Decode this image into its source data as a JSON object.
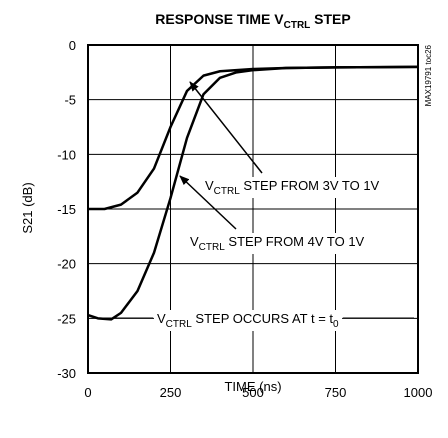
{
  "chart_data": {
    "type": "line",
    "title": [
      {
        "text": "RESPONSE TIME V"
      },
      {
        "text": "CTRL",
        "sub": true
      },
      {
        "text": " STEP"
      }
    ],
    "side_note": "MAX19791 toc26",
    "x_label": "TIME (ns)",
    "y_label": "S21 (dB)",
    "xlim": [
      0,
      1000
    ],
    "xticks": [
      0,
      250,
      500,
      750,
      1000
    ],
    "ylim": [
      -30,
      0
    ],
    "yticks": [
      0,
      -5,
      -10,
      -15,
      -20,
      -25,
      -30
    ],
    "grid": true,
    "series": [
      {
        "name": "3V TO 1V",
        "color": "#000000",
        "x": [
          0,
          50,
          100,
          150,
          200,
          250,
          300,
          350,
          400,
          500,
          600,
          750,
          1000
        ],
        "values": [
          -15,
          -15,
          -14.6,
          -13.5,
          -11.3,
          -7.5,
          -4.2,
          -2.8,
          -2.4,
          -2.2,
          -2.1,
          -2.05,
          -2
        ]
      },
      {
        "name": "4V TO 1V",
        "color": "#000000",
        "x": [
          0,
          30,
          70,
          100,
          150,
          200,
          250,
          300,
          350,
          400,
          450,
          500,
          600,
          750,
          1000
        ],
        "values": [
          -24.7,
          -25,
          -25.1,
          -24.5,
          -22.5,
          -19,
          -14,
          -8.5,
          -4.5,
          -3,
          -2.5,
          -2.3,
          -2.1,
          -2.05,
          -2
        ]
      }
    ],
    "annotations": [
      [
        {
          "text": "V"
        },
        {
          "text": "CTRL",
          "sub": true
        },
        {
          "text": " STEP FROM 3V TO 1V"
        }
      ],
      [
        {
          "text": "V"
        },
        {
          "text": "CTRL",
          "sub": true
        },
        {
          "text": " STEP FROM 4V TO 1V"
        }
      ],
      [
        {
          "text": "V"
        },
        {
          "text": "CTRL",
          "sub": true
        },
        {
          "text": " STEP OCCURS AT t = t"
        },
        {
          "text": "0",
          "sub": true
        }
      ]
    ]
  }
}
